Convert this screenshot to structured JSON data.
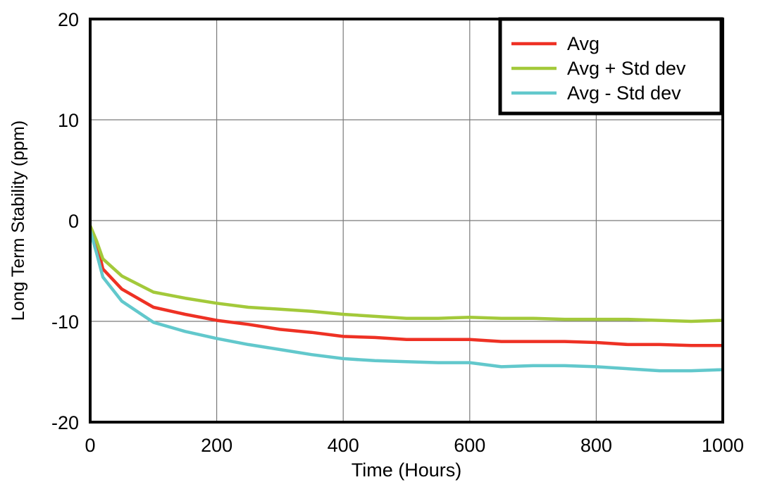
{
  "chart_data": {
    "type": "line",
    "title": "",
    "xlabel": "Time (Hours)",
    "ylabel": "Long Term Stability (ppm)",
    "xlim": [
      0,
      1000
    ],
    "ylim": [
      -20,
      20
    ],
    "xticks": [
      0,
      200,
      400,
      600,
      800,
      1000
    ],
    "yticks": [
      -20,
      -10,
      0,
      10,
      20
    ],
    "grid": true,
    "legend_position": "top-right",
    "series": [
      {
        "name": "Avg",
        "color": "#ee3124",
        "x": [
          0,
          10,
          20,
          50,
          100,
          150,
          200,
          250,
          300,
          350,
          400,
          450,
          500,
          550,
          600,
          650,
          700,
          750,
          800,
          850,
          900,
          950,
          1000
        ],
        "y": [
          -0.8,
          -2.1,
          -4.8,
          -6.8,
          -8.6,
          -9.3,
          -9.9,
          -10.3,
          -10.8,
          -11.1,
          -11.5,
          -11.6,
          -11.8,
          -11.8,
          -11.8,
          -12.0,
          -12.0,
          -12.0,
          -12.1,
          -12.3,
          -12.3,
          -12.4,
          -12.4
        ]
      },
      {
        "name": "Avg + Std dev",
        "color": "#a3c93a",
        "x": [
          0,
          10,
          20,
          50,
          100,
          150,
          200,
          250,
          300,
          350,
          400,
          450,
          500,
          550,
          600,
          650,
          700,
          750,
          800,
          850,
          900,
          950,
          1000
        ],
        "y": [
          -0.5,
          -2.0,
          -3.8,
          -5.5,
          -7.1,
          -7.7,
          -8.2,
          -8.6,
          -8.8,
          -9.0,
          -9.3,
          -9.5,
          -9.7,
          -9.7,
          -9.6,
          -9.7,
          -9.7,
          -9.8,
          -9.8,
          -9.8,
          -9.9,
          -10.0,
          -9.9
        ]
      },
      {
        "name": "Avg - Std dev",
        "color": "#62c8cc",
        "x": [
          0,
          10,
          20,
          50,
          100,
          150,
          200,
          250,
          300,
          350,
          400,
          450,
          500,
          550,
          600,
          650,
          700,
          750,
          800,
          850,
          900,
          950,
          1000
        ],
        "y": [
          -1.0,
          -3.2,
          -5.6,
          -8.0,
          -10.1,
          -11.0,
          -11.7,
          -12.3,
          -12.8,
          -13.3,
          -13.7,
          -13.9,
          -14.0,
          -14.1,
          -14.1,
          -14.5,
          -14.4,
          -14.4,
          -14.5,
          -14.7,
          -14.9,
          -14.9,
          -14.8
        ]
      }
    ]
  }
}
